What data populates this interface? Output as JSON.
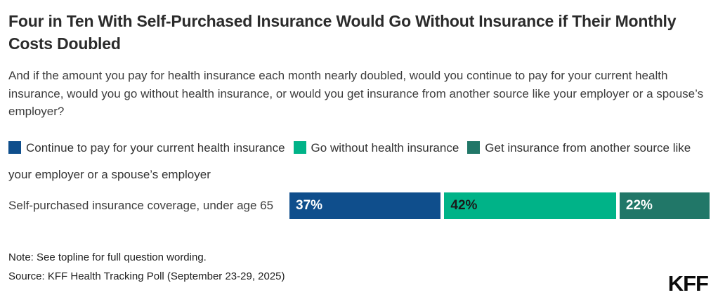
{
  "header": {
    "title": "Four in Ten With Self-Purchased Insurance Would Go Without Insurance if Their Monthly Costs Doubled",
    "subtitle": "And if the amount you pay for health insurance each month nearly doubled, would you continue to pay for your current health insurance, would you go without health insurance, or would you get insurance from another source like your employer or a spouse’s employer?"
  },
  "legend": {
    "items": [
      {
        "label": "Continue to pay for your current health insurance",
        "color": "#0f4e8c"
      },
      {
        "label": "Go without health insurance",
        "color": "#00b388"
      },
      {
        "label": "Get insurance from another source like your employer or a spouse’s employer",
        "color": "#217768"
      }
    ]
  },
  "chart_data": {
    "type": "bar",
    "orientation": "horizontal-stacked",
    "categories": [
      "Self-purchased insurance coverage, under age 65"
    ],
    "series": [
      {
        "name": "Continue to pay for your current health insurance",
        "values": [
          37
        ],
        "color": "#0f4e8c",
        "label_color": "#ffffff"
      },
      {
        "name": "Go without health insurance",
        "values": [
          42
        ],
        "color": "#00b388",
        "label_color": "#1a1a1a"
      },
      {
        "name": "Get insurance from another source like your employer or a spouse’s employer",
        "values": [
          22
        ],
        "color": "#217768",
        "label_color": "#ffffff"
      }
    ],
    "value_suffix": "%",
    "xlim": [
      0,
      101
    ],
    "legend_position": "top",
    "grid": false,
    "title": "Four in Ten With Self-Purchased Insurance Would Go Without Insurance if Their Monthly Costs Doubled"
  },
  "footer": {
    "note": "Note: See topline for full question wording.",
    "source": "Source: KFF Health Tracking Poll (September 23-29, 2025)",
    "logo": "KFF"
  }
}
